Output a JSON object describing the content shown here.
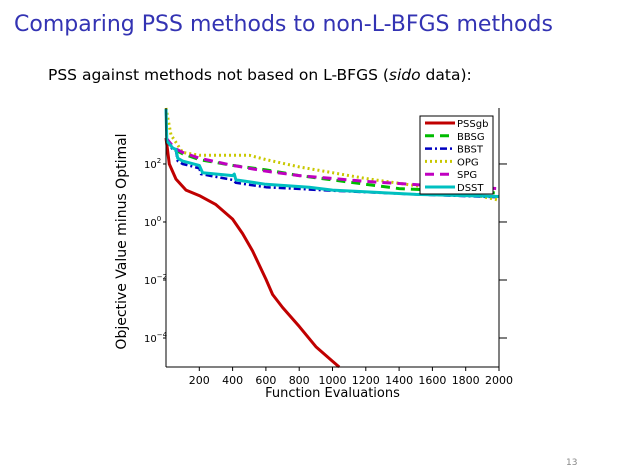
{
  "slide": {
    "title": "Comparing PSS methods to non-L-BFGS methods",
    "subtitle_pre": "PSS against methods not based on L-BFGS (",
    "subtitle_em": "sido",
    "subtitle_post": " data):",
    "page_number": "13",
    "title_color": "#3333b3"
  },
  "chart_data": {
    "type": "line",
    "title": "",
    "xlabel": "Function Evaluations",
    "ylabel": "Objective Value minus Optimal",
    "xlim": [
      0,
      2000
    ],
    "ylim_log10": [
      -5,
      3.93
    ],
    "yscale": "log",
    "xticks": [
      200,
      400,
      600,
      800,
      1000,
      1200,
      1400,
      1600,
      1800,
      2000
    ],
    "yticks": [
      {
        "base": "10",
        "exp": "2",
        "log10": 2
      },
      {
        "base": "10",
        "exp": "0",
        "log10": 0
      },
      {
        "base": "10",
        "exp": "−2",
        "log10": -2
      },
      {
        "base": "10",
        "exp": "−4",
        "log10": -4
      }
    ],
    "legend_position": "top-right",
    "grid": false,
    "series": [
      {
        "name": "PSSgb",
        "color": "#c00000",
        "dash": "",
        "width": 3,
        "x": [
          0,
          20,
          60,
          120,
          200,
          300,
          400,
          460,
          520,
          600,
          640,
          700,
          800,
          900,
          1000,
          1040
        ],
        "y_log10": [
          2.9,
          2.0,
          1.48,
          1.1,
          0.91,
          0.6,
          0.1,
          -0.4,
          -1.0,
          -1.97,
          -2.5,
          -2.95,
          -3.6,
          -4.3,
          -4.8,
          -5.0
        ]
      },
      {
        "name": "BBSG",
        "color": "#00bb00",
        "dash": "9,6",
        "width": 3,
        "x": [
          0,
          50,
          100,
          200,
          400,
          600,
          800,
          1000,
          1200,
          1400,
          1600,
          2000
        ],
        "y_log10": [
          2.9,
          2.5,
          2.35,
          2.15,
          1.95,
          1.8,
          1.6,
          1.45,
          1.3,
          1.15,
          1.1,
          1.0
        ]
      },
      {
        "name": "BBST",
        "color": "#0000c0",
        "dash": "7,3,2,3",
        "width": 2.5,
        "x": [
          0,
          5,
          40,
          60,
          70,
          100,
          200,
          210,
          400,
          420,
          600,
          1000,
          1500,
          2000
        ],
        "y_log10": [
          3.9,
          2.8,
          2.5,
          2.45,
          2.1,
          2.0,
          1.85,
          1.65,
          1.45,
          1.35,
          1.2,
          1.08,
          0.95,
          0.85
        ]
      },
      {
        "name": "OPG",
        "color": "#c8c800",
        "dash": "2,3",
        "width": 3,
        "x": [
          0,
          30,
          100,
          200,
          500,
          600,
          800,
          1000,
          1200,
          1500,
          1800,
          2000
        ],
        "y_log10": [
          3.93,
          3.0,
          2.4,
          2.3,
          2.3,
          2.15,
          1.9,
          1.7,
          1.5,
          1.25,
          1.0,
          0.75
        ]
      },
      {
        "name": "SPG",
        "color": "#c000c0",
        "dash": "9,6",
        "width": 3,
        "x": [
          0,
          50,
          100,
          200,
          400,
          600,
          800,
          1000,
          1200,
          1600,
          2000
        ],
        "y_log10": [
          2.9,
          2.55,
          2.4,
          2.2,
          1.95,
          1.75,
          1.6,
          1.5,
          1.4,
          1.25,
          1.15
        ]
      },
      {
        "name": "DSST",
        "color": "#00c0c0",
        "dash": "",
        "width": 3,
        "x": [
          0,
          5,
          40,
          60,
          70,
          100,
          200,
          220,
          400,
          410,
          420,
          600,
          860,
          1000,
          1500,
          2000
        ],
        "y_log10": [
          3.9,
          2.8,
          2.55,
          2.5,
          2.2,
          2.1,
          1.95,
          1.7,
          1.6,
          1.65,
          1.45,
          1.3,
          1.2,
          1.1,
          0.95,
          0.88
        ]
      }
    ]
  }
}
